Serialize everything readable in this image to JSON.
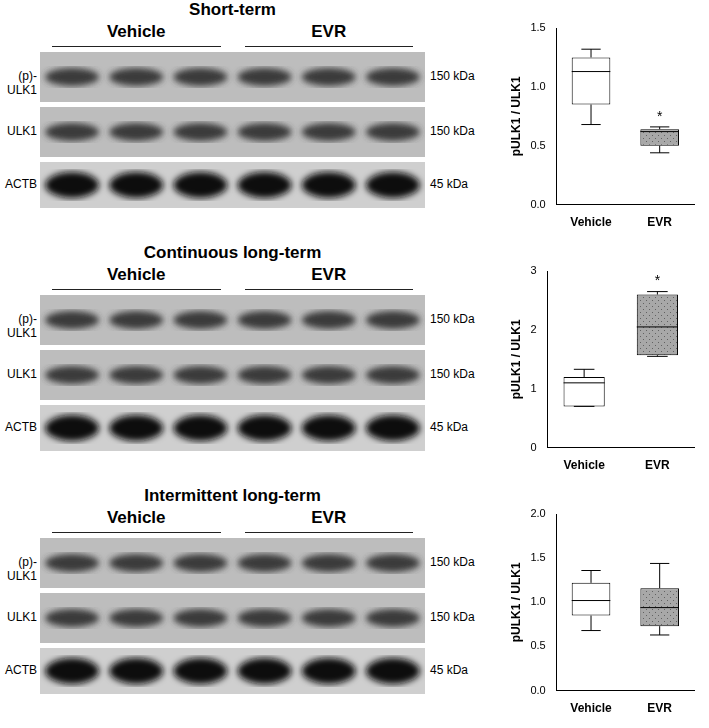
{
  "blots": [
    {
      "title": "Short-term",
      "groups": [
        "Vehicle",
        "EVR"
      ],
      "rows": [
        {
          "label": "(p)-ULK1",
          "size": "150 kDa"
        },
        {
          "label": "ULK1",
          "size": "150 kDa"
        },
        {
          "label": "ACTB",
          "size": "45 kDa"
        }
      ]
    },
    {
      "title": "Continuous long-term",
      "groups": [
        "Vehicle",
        "EVR"
      ],
      "rows": [
        {
          "label": "(p)-ULK1",
          "size": "150 kDa"
        },
        {
          "label": "ULK1",
          "size": "150 kDa"
        },
        {
          "label": "ACTB",
          "size": "45 kDa"
        }
      ]
    },
    {
      "title": "Intermittent long-term",
      "groups": [
        "Vehicle",
        "EVR"
      ],
      "rows": [
        {
          "label": "(p)-ULK1",
          "size": "150 kDa"
        },
        {
          "label": "ULK1",
          "size": "150 kDa"
        },
        {
          "label": "ACTB",
          "size": "45 kDa"
        }
      ]
    }
  ],
  "chart_data": [
    {
      "type": "box",
      "y_label": "pULK1 / ULK1",
      "categories": [
        "Vehicle",
        "EVR"
      ],
      "values": [
        {
          "min": 0.68,
          "q1": 0.85,
          "median": 1.13,
          "q3": 1.25,
          "max": 1.32
        },
        {
          "min": 0.44,
          "q1": 0.5,
          "median": 0.62,
          "q3": 0.64,
          "max": 0.66
        }
      ],
      "colors": [
        "#ffffff",
        "#a8a8a8"
      ],
      "ylim": [
        0,
        1.5
      ],
      "yticks": [
        {
          "value": 0,
          "label": "0.0"
        },
        0.5,
        {
          "value": 1,
          "label": "1.0"
        },
        1.5
      ],
      "annotations": [
        {
          "category": "EVR",
          "text": "*"
        }
      ],
      "grid": false
    },
    {
      "type": "box",
      "y_label": "pULK1 / ULK1",
      "categories": [
        "Vehicle",
        "EVR"
      ],
      "values": [
        {
          "min": 0.7,
          "q1": 0.7,
          "median": 1.1,
          "q3": 1.2,
          "max": 1.33
        },
        {
          "min": 1.55,
          "q1": 1.57,
          "median": 2.05,
          "q3": 2.6,
          "max": 2.65
        }
      ],
      "colors": [
        "#ffffff",
        "#a8a8a8"
      ],
      "ylim": [
        0,
        3
      ],
      "yticks": [
        0,
        1,
        2,
        3
      ],
      "annotations": [
        {
          "category": "EVR",
          "text": "*"
        }
      ],
      "grid": false
    },
    {
      "type": "box",
      "y_label": "pULK1 / ULK1",
      "categories": [
        "Vehicle",
        "EVR"
      ],
      "values": [
        {
          "min": 0.68,
          "q1": 0.85,
          "median": 1.02,
          "q3": 1.22,
          "max": 1.36
        },
        {
          "min": 0.63,
          "q1": 0.73,
          "median": 0.94,
          "q3": 1.16,
          "max": 1.44
        }
      ],
      "colors": [
        "#ffffff",
        "#a8a8a8"
      ],
      "ylim": [
        0,
        2
      ],
      "yticks": [
        {
          "value": 0,
          "label": "0.0"
        },
        0.5,
        {
          "value": 1,
          "label": "1.0"
        },
        1.5,
        {
          "value": 2,
          "label": "2.0"
        }
      ],
      "grid": false
    }
  ]
}
